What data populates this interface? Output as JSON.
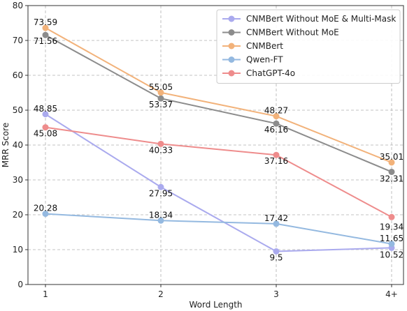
{
  "chart_data": {
    "type": "line",
    "xlabel": "Word Length",
    "ylabel": "MRR Score",
    "categories": [
      "1",
      "2",
      "3",
      "4+"
    ],
    "ylim": [
      0,
      80
    ],
    "yticks": [
      0,
      10,
      20,
      30,
      40,
      50,
      60,
      70,
      80
    ],
    "grid": true,
    "legend_position": "top-right",
    "series": [
      {
        "name": "CNMBert Without MoE & Multi-Mask",
        "color": "#aaaaee",
        "values": [
          48.85,
          27.95,
          9.5,
          10.52
        ],
        "labels": [
          "48.85",
          "27.95",
          "9.5",
          "10.52"
        ]
      },
      {
        "name": "CNMBert Without MoE",
        "color": "#8c8c8c",
        "values": [
          71.56,
          53.37,
          46.16,
          32.31
        ],
        "labels": [
          "71.56",
          "53.37",
          "46.16",
          "32.31"
        ]
      },
      {
        "name": "CNMBert",
        "color": "#f2b27a",
        "values": [
          73.59,
          55.05,
          48.27,
          35.01
        ],
        "labels": [
          "73.59",
          "55.05",
          "48.27",
          "35.01"
        ]
      },
      {
        "name": "Qwen-FT",
        "color": "#94b9e0",
        "values": [
          20.28,
          18.34,
          17.42,
          11.65
        ],
        "labels": [
          "20.28",
          "18.34",
          "17.42",
          "11.65"
        ]
      },
      {
        "name": "ChatGPT-4o",
        "color": "#ee8c8c",
        "values": [
          45.08,
          40.33,
          37.16,
          19.34
        ],
        "labels": [
          "45.08",
          "40.33",
          "37.16",
          "19.34"
        ]
      }
    ]
  }
}
